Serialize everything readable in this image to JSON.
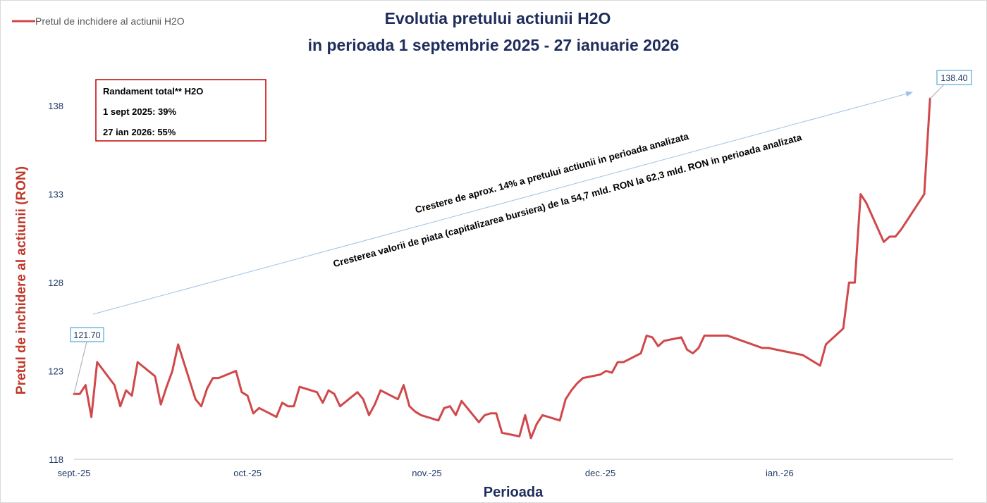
{
  "chart_data": {
    "type": "line",
    "title": "Evolutia pretului actiunii H2O",
    "subtitle": "in perioada 1 septembrie 2025 - 27 ianuarie 2026",
    "xlabel": "Perioada",
    "ylabel": "Pretul de inchidere al actiunii (RON)",
    "ylim": [
      118,
      140
    ],
    "yticks": [
      "118",
      "123",
      "128",
      "133",
      "138"
    ],
    "xlim": [
      "2025-09-01",
      "2026-01-31"
    ],
    "xticks": [
      {
        "date": "2025-09-01",
        "label": "sept.-25"
      },
      {
        "date": "2025-10-01",
        "label": "oct.-25"
      },
      {
        "date": "2025-11-01",
        "label": "nov.-25"
      },
      {
        "date": "2025-12-01",
        "label": "dec.-25"
      },
      {
        "date": "2026-01-01",
        "label": "ian.-26"
      }
    ],
    "grid": false,
    "legend": "top-left",
    "color": "#d0484a",
    "series": [
      {
        "name": "Pretul de inchidere al actiunii H2O",
        "x": [
          "2025-09-01",
          "2025-09-02",
          "2025-09-03",
          "2025-09-04",
          "2025-09-05",
          "2025-09-08",
          "2025-09-09",
          "2025-09-10",
          "2025-09-11",
          "2025-09-12",
          "2025-09-15",
          "2025-09-16",
          "2025-09-17",
          "2025-09-18",
          "2025-09-19",
          "2025-09-22",
          "2025-09-23",
          "2025-09-24",
          "2025-09-25",
          "2025-09-26",
          "2025-09-29",
          "2025-09-30",
          "2025-10-01",
          "2025-10-02",
          "2025-10-03",
          "2025-10-06",
          "2025-10-07",
          "2025-10-08",
          "2025-10-09",
          "2025-10-10",
          "2025-10-13",
          "2025-10-14",
          "2025-10-15",
          "2025-10-16",
          "2025-10-17",
          "2025-10-20",
          "2025-10-21",
          "2025-10-22",
          "2025-10-23",
          "2025-10-24",
          "2025-10-27",
          "2025-10-28",
          "2025-10-29",
          "2025-10-30",
          "2025-10-31",
          "2025-11-03",
          "2025-11-04",
          "2025-11-05",
          "2025-11-06",
          "2025-11-07",
          "2025-11-10",
          "2025-11-11",
          "2025-11-12",
          "2025-11-13",
          "2025-11-14",
          "2025-11-17",
          "2025-11-18",
          "2025-11-19",
          "2025-11-20",
          "2025-11-21",
          "2025-11-24",
          "2025-11-25",
          "2025-11-26",
          "2025-11-27",
          "2025-11-28",
          "2025-12-01",
          "2025-12-02",
          "2025-12-03",
          "2025-12-04",
          "2025-12-05",
          "2025-12-08",
          "2025-12-09",
          "2025-12-10",
          "2025-12-11",
          "2025-12-12",
          "2025-12-15",
          "2025-12-16",
          "2025-12-17",
          "2025-12-18",
          "2025-12-19",
          "2025-12-22",
          "2025-12-23",
          "2025-12-29",
          "2025-12-30",
          "2026-01-05",
          "2026-01-08",
          "2026-01-09",
          "2026-01-12",
          "2026-01-13",
          "2026-01-14",
          "2026-01-15",
          "2026-01-16",
          "2026-01-19",
          "2026-01-20",
          "2026-01-21",
          "2026-01-22",
          "2026-01-23",
          "2026-01-26",
          "2026-01-27"
        ],
        "values": [
          121.7,
          121.7,
          122.2,
          120.4,
          123.5,
          122.2,
          121.0,
          121.9,
          121.6,
          123.5,
          122.7,
          121.1,
          122.1,
          123.0,
          124.5,
          121.4,
          121.0,
          122.0,
          122.6,
          122.6,
          123.0,
          121.8,
          121.6,
          120.6,
          120.9,
          120.4,
          121.2,
          121.0,
          121.0,
          122.1,
          121.8,
          121.2,
          121.9,
          121.7,
          121.0,
          121.8,
          121.4,
          120.5,
          121.1,
          121.9,
          121.4,
          122.2,
          121.0,
          120.7,
          120.5,
          120.2,
          120.9,
          121.0,
          120.5,
          121.3,
          120.1,
          120.5,
          120.6,
          120.6,
          119.5,
          119.3,
          120.5,
          119.2,
          120.0,
          120.5,
          120.2,
          121.4,
          121.9,
          122.3,
          122.6,
          122.8,
          123.0,
          122.9,
          123.5,
          123.5,
          124.0,
          125.0,
          124.9,
          124.4,
          124.7,
          124.9,
          124.2,
          124.0,
          124.3,
          125.0,
          125.0,
          125.0,
          124.3,
          124.3,
          123.9,
          123.3,
          124.5,
          125.4,
          128.0,
          128.0,
          133.0,
          132.5,
          130.3,
          130.6,
          130.6,
          131.0,
          131.5,
          133.0,
          138.4
        ]
      }
    ],
    "annotations": {
      "start_callout": "121.70",
      "end_callout": "138.40",
      "trend_text_1": "Crestere de aprox. 14% a pretului actiunii in perioada analizata",
      "trend_text_2": "Cresterea valorii de piata (capitalizarea bursiera) de la 54,7 mld.  RON la 62,3 mld. RON in perioada analizata",
      "arrow_color": "#9dc3e6",
      "callout_border_color": "#2e9ad0",
      "box_border_color": "#c00000"
    },
    "info_box": {
      "line1": "Randament total** H2O",
      "line2": "1 sept 2025: 39%",
      "line3": "27 ian 2026: 55%"
    }
  }
}
